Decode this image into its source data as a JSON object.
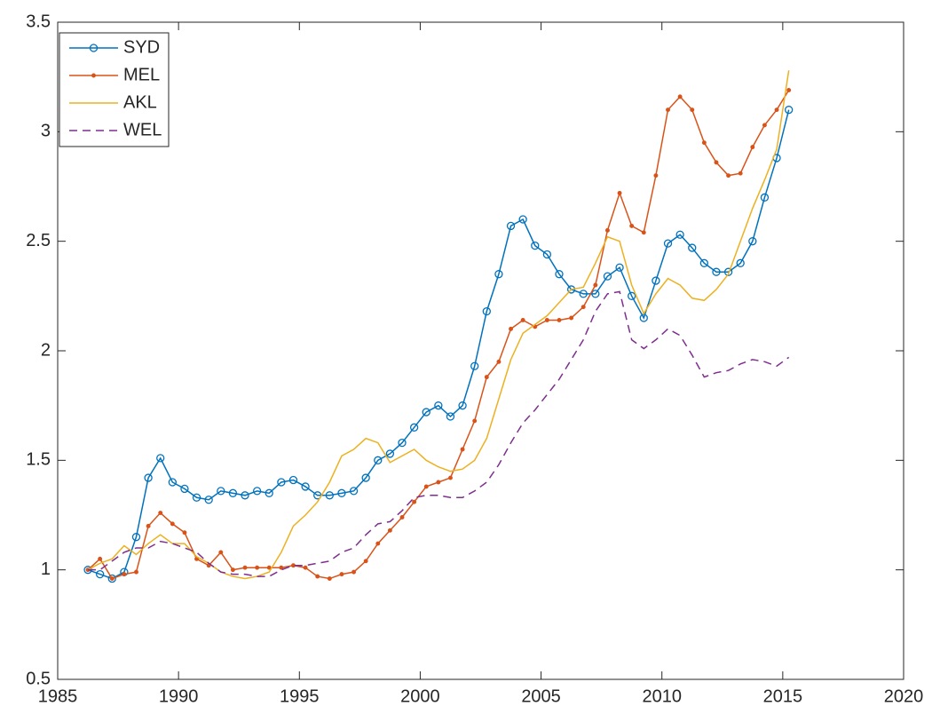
{
  "chart_data": {
    "type": "line",
    "x": [
      1986.25,
      1986.75,
      1987.25,
      1987.75,
      1988.25,
      1988.75,
      1989.25,
      1989.75,
      1990.25,
      1990.75,
      1991.25,
      1991.75,
      1992.25,
      1992.75,
      1993.25,
      1993.75,
      1994.25,
      1994.75,
      1995.25,
      1995.75,
      1996.25,
      1996.75,
      1997.25,
      1997.75,
      1998.25,
      1998.75,
      1999.25,
      1999.75,
      2000.25,
      2000.75,
      2001.25,
      2001.75,
      2002.25,
      2002.75,
      2003.25,
      2003.75,
      2004.25,
      2004.75,
      2005.25,
      2005.75,
      2006.25,
      2006.75,
      2007.25,
      2007.75,
      2008.25,
      2008.75,
      2009.25,
      2009.75,
      2010.25,
      2010.75,
      2011.25,
      2011.75,
      2012.25,
      2012.75,
      2013.25,
      2013.75,
      2014.25,
      2014.75,
      2015.25
    ],
    "series": [
      {
        "name": "SYD",
        "color": "#0072bd",
        "marker": "circle",
        "values": [
          1.0,
          0.98,
          0.96,
          0.99,
          1.15,
          1.42,
          1.51,
          1.4,
          1.37,
          1.33,
          1.32,
          1.36,
          1.35,
          1.34,
          1.36,
          1.35,
          1.4,
          1.41,
          1.38,
          1.34,
          1.34,
          1.35,
          1.36,
          1.42,
          1.5,
          1.53,
          1.58,
          1.65,
          1.72,
          1.75,
          1.7,
          1.75,
          1.93,
          2.18,
          2.35,
          2.57,
          2.6,
          2.48,
          2.44,
          2.35,
          2.28,
          2.26,
          2.26,
          2.34,
          2.38,
          2.25,
          2.15,
          2.32,
          2.49,
          2.53,
          2.47,
          2.4,
          2.36,
          2.36,
          2.4,
          2.5,
          2.7,
          2.88,
          3.1
        ]
      },
      {
        "name": "MEL",
        "color": "#d95319",
        "marker": "dot",
        "values": [
          1.0,
          1.05,
          0.96,
          0.98,
          0.99,
          1.2,
          1.26,
          1.21,
          1.17,
          1.05,
          1.02,
          1.08,
          1.0,
          1.01,
          1.01,
          1.01,
          1.01,
          1.02,
          1.01,
          0.97,
          0.96,
          0.98,
          0.99,
          1.04,
          1.12,
          1.18,
          1.24,
          1.31,
          1.38,
          1.4,
          1.42,
          1.55,
          1.68,
          1.88,
          1.95,
          2.1,
          2.14,
          2.11,
          2.14,
          2.14,
          2.15,
          2.2,
          2.3,
          2.55,
          2.72,
          2.57,
          2.54,
          2.8,
          3.1,
          3.16,
          3.1,
          2.95,
          2.86,
          2.8,
          2.81,
          2.93,
          3.03,
          3.1,
          3.19
        ]
      },
      {
        "name": "AKL",
        "color": "#edb120",
        "values": [
          1.0,
          1.03,
          1.05,
          1.11,
          1.07,
          1.12,
          1.16,
          1.12,
          1.12,
          1.06,
          1.03,
          0.99,
          0.97,
          0.96,
          0.97,
          0.99,
          1.08,
          1.2,
          1.25,
          1.31,
          1.4,
          1.52,
          1.55,
          1.6,
          1.58,
          1.49,
          1.52,
          1.55,
          1.5,
          1.47,
          1.45,
          1.46,
          1.5,
          1.6,
          1.78,
          1.96,
          2.08,
          2.12,
          2.16,
          2.22,
          2.28,
          2.29,
          2.4,
          2.52,
          2.5,
          2.3,
          2.17,
          2.26,
          2.33,
          2.3,
          2.24,
          2.23,
          2.28,
          2.35,
          2.5,
          2.65,
          2.78,
          2.92,
          3.28
        ]
      },
      {
        "name": "WEL",
        "color": "#7e2f8e",
        "dashed": true,
        "values": [
          1.0,
          1.0,
          1.04,
          1.08,
          1.1,
          1.1,
          1.13,
          1.12,
          1.1,
          1.08,
          1.03,
          0.99,
          0.98,
          0.98,
          0.97,
          0.97,
          1.0,
          1.02,
          1.02,
          1.03,
          1.04,
          1.08,
          1.1,
          1.16,
          1.21,
          1.22,
          1.27,
          1.33,
          1.34,
          1.34,
          1.33,
          1.33,
          1.36,
          1.4,
          1.48,
          1.58,
          1.67,
          1.73,
          1.8,
          1.87,
          1.96,
          2.05,
          2.18,
          2.26,
          2.27,
          2.05,
          2.01,
          2.05,
          2.1,
          2.07,
          1.98,
          1.88,
          1.9,
          1.91,
          1.94,
          1.96,
          1.95,
          1.93,
          1.97
        ]
      }
    ],
    "xlim": [
      1985,
      2020
    ],
    "xticks": [
      1985,
      1990,
      1995,
      2000,
      2005,
      2010,
      2015,
      2020
    ],
    "ylim": [
      0.5,
      3.5
    ],
    "yticks": [
      0.5,
      1,
      1.5,
      2,
      2.5,
      3,
      3.5
    ],
    "grid": false,
    "legend": "upper left"
  }
}
